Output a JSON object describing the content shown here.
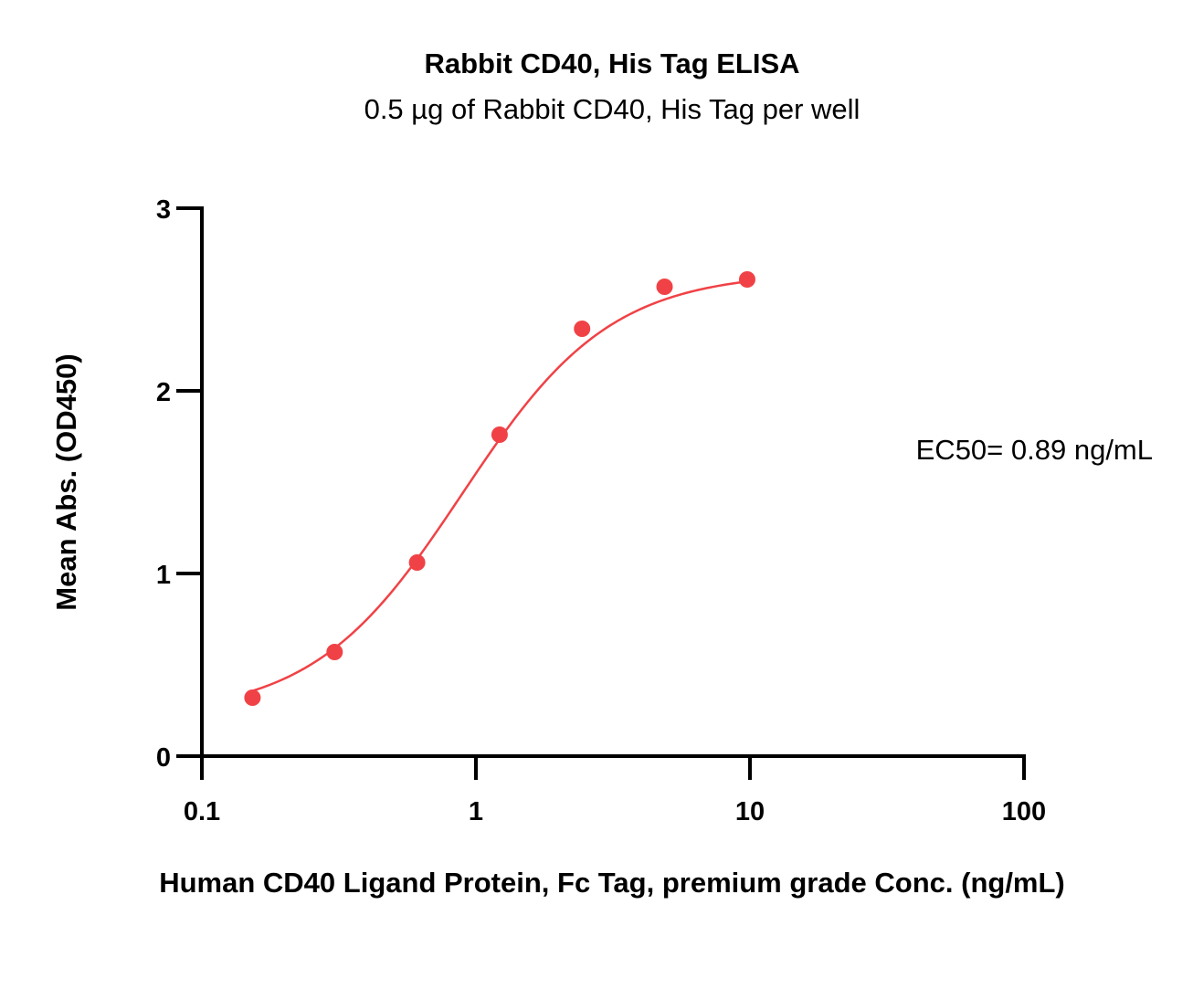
{
  "chart_data": {
    "type": "scatter",
    "title": "Rabbit CD40, His Tag ELISA",
    "subtitle": "0.5 µg of Rabbit CD40, His Tag per well",
    "xlabel": "Human CD40 Ligand Protein, Fc Tag, premium grade Conc. (ng/mL)",
    "ylabel": "Mean Abs. (OD450)",
    "xscale": "log",
    "xlim": [
      0.1,
      100
    ],
    "ylim": [
      0,
      3
    ],
    "xticks": [
      "0.1",
      "1",
      "10",
      "100"
    ],
    "yticks": [
      "0",
      "1",
      "2",
      "3"
    ],
    "grid": false,
    "annotation": "EC50= 0.89 ng/mL",
    "series": [
      {
        "color": "#f04246",
        "x": [
          0.153,
          0.305,
          0.61,
          1.22,
          2.44,
          4.88,
          9.77
        ],
        "y": [
          0.32,
          0.57,
          1.06,
          1.76,
          2.34,
          2.57,
          2.61
        ]
      }
    ],
    "fit": {
      "type": "4PL",
      "bottom": 0.22,
      "top": 2.65,
      "ec50": 0.89,
      "hill": 1.6
    }
  }
}
